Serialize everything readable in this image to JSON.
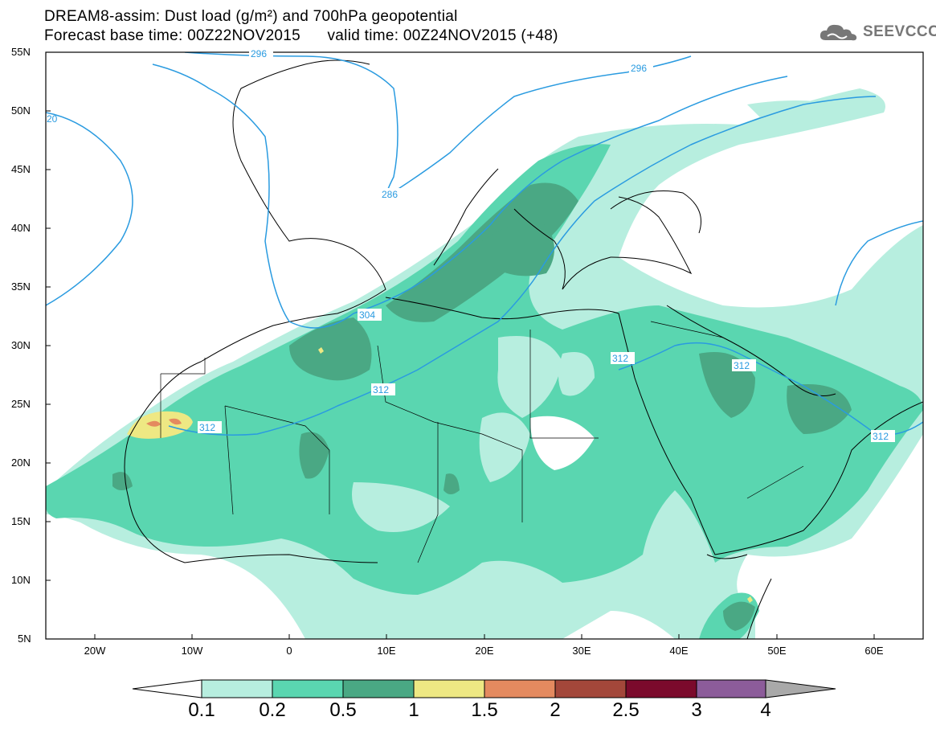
{
  "header": {
    "title_line1": "DREAM8-assim: Dust load (g/m²) and 700hPa geopotential",
    "title_line2": "Forecast base time: 00Z22NOV2015      valid time: 00Z24NOV2015 (+48)"
  },
  "logo": {
    "text": "SEEVCCC",
    "icon": "cloud-logo-icon"
  },
  "axes": {
    "lat_labels": [
      "55N",
      "50N",
      "45N",
      "40N",
      "35N",
      "30N",
      "25N",
      "20N",
      "15N",
      "10N",
      "5N"
    ],
    "lon_labels": [
      "20W",
      "10W",
      "0",
      "10E",
      "20E",
      "30E",
      "40E",
      "50E",
      "60E"
    ]
  },
  "contour_labels": [
    "296",
    "296",
    "20",
    "286",
    "304",
    "312",
    "312",
    "312",
    "312",
    "312"
  ],
  "colorbar": {
    "labels": [
      "0.1",
      "0.2",
      "0.5",
      "1",
      "1.5",
      "2",
      "2.5",
      "3",
      "4"
    ],
    "colors": [
      "#b7eedf",
      "#5ad6b0",
      "#4aa884",
      "#eee883",
      "#e48a5f",
      "#a3473a",
      "#7b0a2c",
      "#8c5c9a",
      "#a9a9a9"
    ]
  },
  "map_colors": {
    "light": "#b7eedf",
    "medium": "#5ad6b0",
    "dark": "#4aa884",
    "yellow": "#eee883",
    "orange": "#e48a5f",
    "contour": "#2a9be0"
  }
}
